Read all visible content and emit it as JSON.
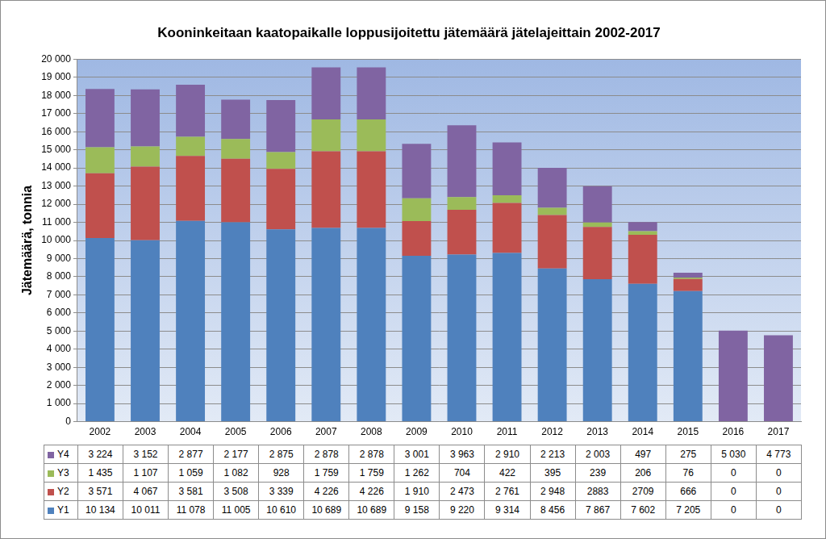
{
  "chart_data": {
    "type": "bar",
    "stacked": true,
    "title": "Kooninkeitaan kaatopaikalle loppusijoitettu jätemäärä jätelajeittain 2002-2017",
    "y_label": "Jätemäärä, tonnia",
    "categories": [
      "2002",
      "2003",
      "2004",
      "2005",
      "2006",
      "2007",
      "2008",
      "2009",
      "2010",
      "2011",
      "2012",
      "2013",
      "2014",
      "2015",
      "2016",
      "2017"
    ],
    "series": [
      {
        "name": "Y1",
        "color": "#4f81bd",
        "values": [
          10134,
          10011,
          11078,
          11005,
          10610,
          10689,
          10689,
          9158,
          9220,
          9314,
          8456,
          7867,
          7602,
          7205,
          0,
          0
        ],
        "value_labels": [
          "10 134",
          "10 011",
          "11 078",
          "11 005",
          "10 610",
          "10 689",
          "10 689",
          "9 158",
          "9 220",
          "9 314",
          "8 456",
          "7 867",
          "7 602",
          "7 205",
          "0",
          "0"
        ]
      },
      {
        "name": "Y2",
        "color": "#c0504d",
        "values": [
          3571,
          4067,
          3581,
          3508,
          3339,
          4226,
          4226,
          1910,
          2473,
          2761,
          2948,
          2883,
          2709,
          666,
          0,
          0
        ],
        "value_labels": [
          "3 571",
          "4 067",
          "3 581",
          "3 508",
          "3 339",
          "4 226",
          "4 226",
          "1 910",
          "2 473",
          "2 761",
          "2 948",
          "2883",
          "2709",
          "666",
          "0",
          "0"
        ]
      },
      {
        "name": "Y3",
        "color": "#9bbb59",
        "values": [
          1435,
          1107,
          1059,
          1082,
          928,
          1759,
          1759,
          1262,
          704,
          422,
          395,
          239,
          206,
          76,
          0,
          0
        ],
        "value_labels": [
          "1 435",
          "1 107",
          "1 059",
          "1 082",
          "928",
          "1 759",
          "1 759",
          "1 262",
          "704",
          "422",
          "395",
          "239",
          "206",
          "76",
          "0",
          "0"
        ]
      },
      {
        "name": "Y4",
        "color": "#8064a2",
        "values": [
          3224,
          3152,
          2877,
          2177,
          2875,
          2878,
          2878,
          3001,
          3963,
          2910,
          2213,
          2003,
          497,
          275,
          5030,
          4773
        ],
        "value_labels": [
          "3 224",
          "3 152",
          "2 877",
          "2 177",
          "2 875",
          "2 878",
          "2 878",
          "3 001",
          "3 963",
          "2 910",
          "2 213",
          "2 003",
          "497",
          "275",
          "5 030",
          "4 773"
        ]
      }
    ],
    "ylim": [
      0,
      20000
    ],
    "yticks": [
      0,
      {
        "value": 1000,
        "label": "1 000"
      },
      {
        "value": 2000,
        "label": "2 000"
      },
      {
        "value": 3000,
        "label": "3 000"
      },
      {
        "value": 4000,
        "label": "4 000"
      },
      {
        "value": 5000,
        "label": "5 000"
      },
      {
        "value": 6000,
        "label": "6 000"
      },
      {
        "value": 7000,
        "label": "7 000"
      },
      {
        "value": 8000,
        "label": "8 000"
      },
      {
        "value": 9000,
        "label": "9 000"
      },
      {
        "value": 10000,
        "label": "10 000"
      },
      {
        "value": 11000,
        "label": "11 000"
      },
      {
        "value": 12000,
        "label": "12 000"
      },
      {
        "value": 13000,
        "label": "13 000"
      },
      {
        "value": 14000,
        "label": "14 000"
      },
      {
        "value": 15000,
        "label": "15 000"
      },
      {
        "value": 16000,
        "label": "16 000"
      },
      {
        "value": 17000,
        "label": "17 000"
      },
      {
        "value": 18000,
        "label": "18 000"
      },
      {
        "value": 19000,
        "label": "19 000"
      },
      {
        "value": 20000,
        "label": "20 000"
      }
    ],
    "grid": true
  }
}
